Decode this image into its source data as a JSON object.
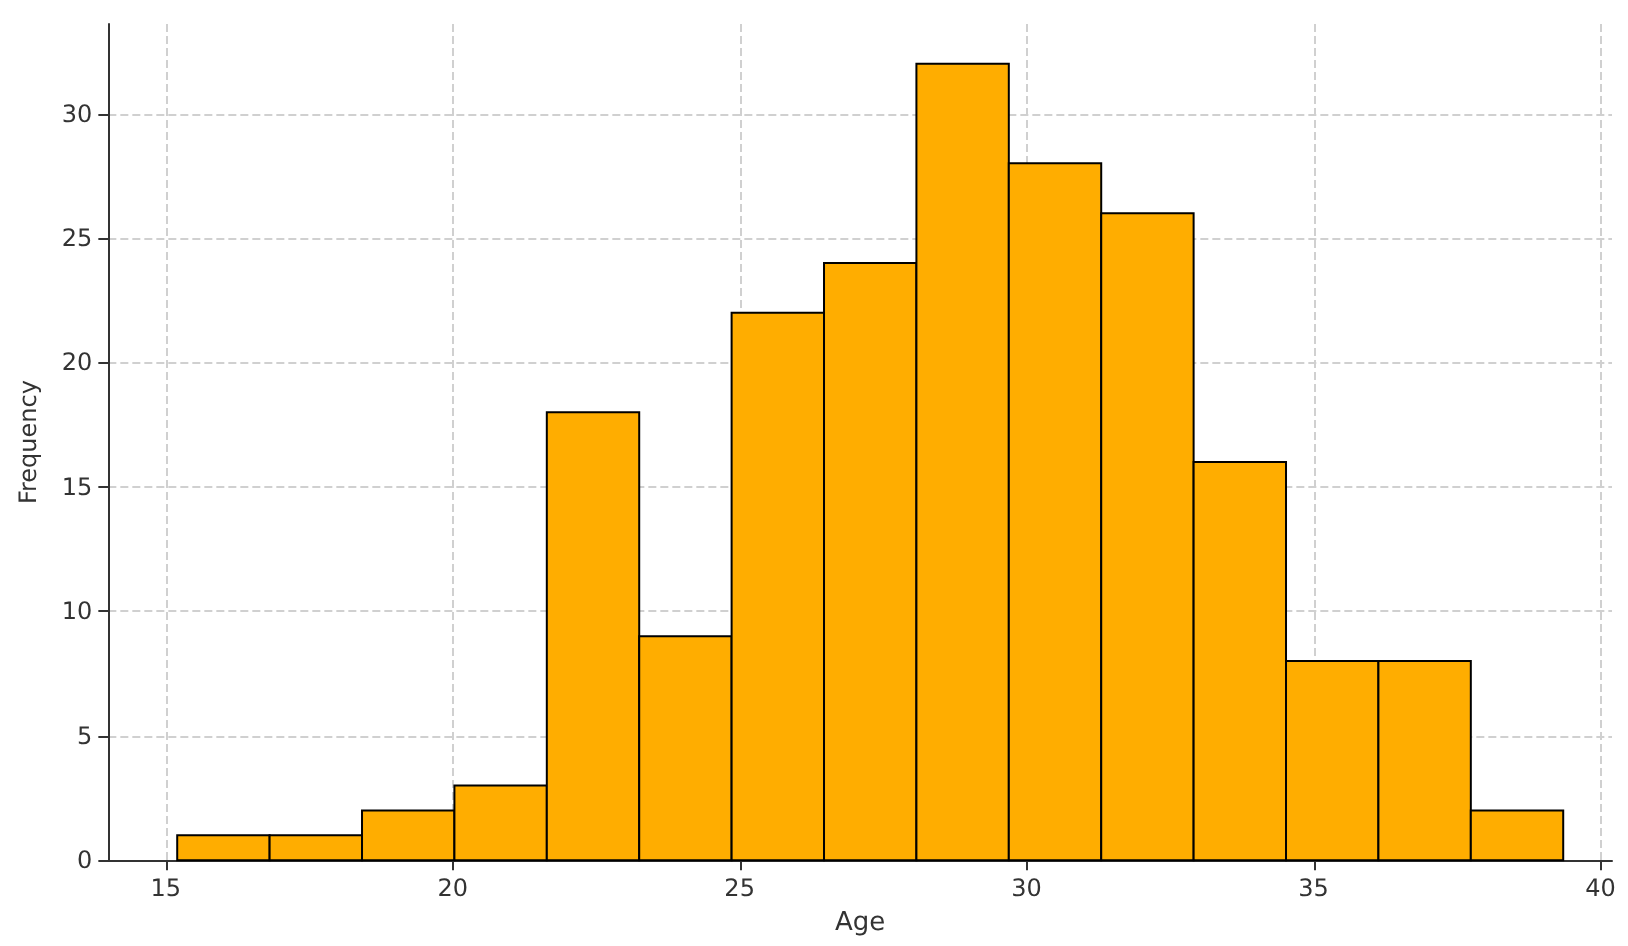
{
  "chart_data": {
    "type": "histogram",
    "xlabel": "Age",
    "ylabel": "Frequency",
    "bins": [
      15.2,
      16.81,
      18.42,
      20.03,
      21.64,
      23.25,
      24.86,
      26.47,
      28.08,
      29.69,
      31.3,
      32.91,
      34.52,
      36.13,
      37.74,
      39.35
    ],
    "values": [
      1,
      1,
      2,
      3,
      18,
      9,
      22,
      24,
      32,
      28,
      26,
      16,
      8,
      8,
      2
    ],
    "color": "#ffad00",
    "xlim": [
      14,
      40.2
    ],
    "xticks": [
      15,
      20,
      25,
      30,
      35,
      40
    ],
    "ylim": [
      0,
      33.6
    ],
    "yticks": [
      0,
      5,
      10,
      15,
      20,
      25,
      30
    ],
    "grid": true
  }
}
